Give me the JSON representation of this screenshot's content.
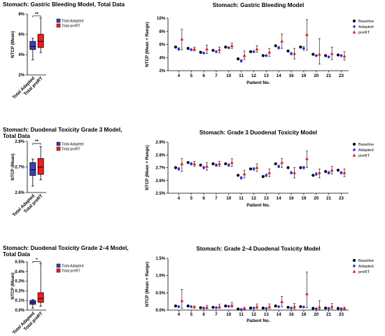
{
  "chart_data": [
    {
      "type": "box",
      "title": "Stomach: Gastric Bleeding Model, Total Data",
      "ylabel": "NTCP (Mean)",
      "yticks": [
        "2%",
        "4%",
        "6%",
        "8%"
      ],
      "ylim": [
        2,
        8
      ],
      "significance": "**",
      "categories": [
        "Total Adapted",
        "Total preRT"
      ],
      "legend": [
        "Total Adapted",
        "Total preRT"
      ],
      "colors": [
        "#3b3fc2",
        "#ff1a1a"
      ],
      "boxes": [
        {
          "min": 3.5,
          "q1": 4.5,
          "median": 4.8,
          "q3": 5.3,
          "max": 5.6
        },
        {
          "min": 4.2,
          "q1": 4.7,
          "median": 5.3,
          "q3": 6.0,
          "max": 7.6
        }
      ]
    },
    {
      "type": "scatter",
      "title": "Stomach: Gastric Bleeding Model",
      "ylabel": "NTCP (Mean + Range)",
      "xlabel": "Patient No.",
      "yticks": [
        "2%",
        "4%",
        "6%",
        "8%",
        "10%"
      ],
      "ylim": [
        2,
        10
      ],
      "categories": [
        "4",
        "5",
        "6",
        "7",
        "10",
        "11",
        "12",
        "13",
        "14",
        "16",
        "19",
        "20",
        "21",
        "23"
      ],
      "series": [
        {
          "name": "Baseline",
          "color": "#000000",
          "marker": "circle",
          "values": [
            5.6,
            5.4,
            4.8,
            5.1,
            5.6,
            3.8,
            4.9,
            4.3,
            5.8,
            5.0,
            5.6,
            4.5,
            4.3,
            4.4
          ],
          "err_low": [
            5.6,
            5.4,
            4.8,
            5.1,
            5.6,
            3.8,
            4.9,
            4.3,
            5.8,
            5.0,
            5.6,
            4.5,
            4.3,
            4.4
          ],
          "err_high": [
            5.6,
            5.4,
            4.8,
            5.1,
            5.6,
            3.8,
            4.9,
            4.3,
            5.8,
            5.0,
            5.6,
            4.5,
            4.3,
            4.4
          ]
        },
        {
          "name": "Adapted",
          "color": "#2030e0",
          "marker": "diamond",
          "values": [
            5.3,
            5.2,
            4.7,
            4.9,
            5.5,
            3.5,
            4.9,
            4.3,
            5.5,
            4.6,
            5.4,
            4.3,
            4.1,
            4.3
          ],
          "err_low": [
            5.1,
            5.1,
            4.6,
            4.8,
            5.4,
            3.3,
            4.8,
            4.2,
            5.3,
            4.4,
            5.1,
            4.2,
            4.0,
            4.2
          ],
          "err_high": [
            5.5,
            5.3,
            4.8,
            5.0,
            5.6,
            3.7,
            5.0,
            4.4,
            5.7,
            4.8,
            5.7,
            4.4,
            4.2,
            4.4
          ]
        },
        {
          "name": "preRT",
          "color": "#e81c1c",
          "marker": "triangle",
          "values": [
            6.8,
            5.3,
            5.3,
            5.2,
            5.8,
            4.3,
            5.3,
            4.8,
            6.5,
            4.6,
            7.5,
            4.5,
            4.6,
            4.2
          ],
          "err_low": [
            5.2,
            5.0,
            4.6,
            4.7,
            5.4,
            3.7,
            4.8,
            4.2,
            5.4,
            3.8,
            5.1,
            3.0,
            3.7,
            3.6
          ],
          "err_high": [
            8.3,
            5.6,
            5.9,
            5.6,
            6.2,
            5.0,
            5.8,
            5.4,
            7.6,
            5.4,
            9.8,
            6.9,
            5.6,
            4.9
          ]
        }
      ],
      "legend_position": "top-right"
    },
    {
      "type": "box",
      "title": "Stomach: Duodenal Toxicity Grade 3 Model, Total Data",
      "ylabel": "NTCP (Mean)",
      "yticks": [
        "2.6%",
        "2.7%",
        "2.8%"
      ],
      "ylim": [
        2.6,
        2.8
      ],
      "significance": "**",
      "categories": [
        "Total Adapted",
        "Total preRT"
      ],
      "legend": [
        "Total Adapted",
        "Total preRT"
      ],
      "colors": [
        "#3b3fc2",
        "#ff1a1a"
      ],
      "boxes": [
        {
          "min": 2.625,
          "q1": 2.667,
          "median": 2.689,
          "q3": 2.717,
          "max": 2.731
        },
        {
          "min": 2.65,
          "q1": 2.671,
          "median": 2.699,
          "q3": 2.733,
          "max": 2.779
        }
      ]
    },
    {
      "type": "scatter",
      "title": "Stomach: Grade 3 Duodenal Toxicity Model",
      "ylabel": "NTCP (Mean + Range)",
      "xlabel": "Patient No.",
      "yticks": [
        "2.5%",
        "2.6%",
        "2.7%",
        "2.8%",
        "2.9%"
      ],
      "ylim": [
        2.5,
        2.9
      ],
      "categories": [
        "4",
        "5",
        "6",
        "7",
        "10",
        "11",
        "12",
        "13",
        "14",
        "16",
        "19",
        "20",
        "21",
        "23"
      ],
      "series": [
        {
          "name": "Baseline",
          "color": "#000000",
          "marker": "circle",
          "values": [
            2.7,
            2.74,
            2.72,
            2.73,
            2.73,
            2.64,
            2.69,
            2.63,
            2.73,
            2.7,
            2.7,
            2.64,
            2.67,
            2.68
          ],
          "err_low": [
            2.7,
            2.74,
            2.72,
            2.73,
            2.73,
            2.64,
            2.69,
            2.63,
            2.73,
            2.7,
            2.7,
            2.64,
            2.67,
            2.68
          ],
          "err_high": [
            2.7,
            2.74,
            2.72,
            2.73,
            2.73,
            2.64,
            2.69,
            2.63,
            2.73,
            2.7,
            2.7,
            2.64,
            2.67,
            2.68
          ]
        },
        {
          "name": "Adapted",
          "color": "#2030e0",
          "marker": "diamond",
          "values": [
            2.69,
            2.73,
            2.7,
            2.72,
            2.72,
            2.62,
            2.69,
            2.64,
            2.71,
            2.66,
            2.7,
            2.65,
            2.66,
            2.66
          ],
          "err_low": [
            2.68,
            2.72,
            2.69,
            2.71,
            2.71,
            2.61,
            2.68,
            2.63,
            2.7,
            2.65,
            2.69,
            2.64,
            2.65,
            2.65
          ],
          "err_high": [
            2.7,
            2.74,
            2.71,
            2.73,
            2.73,
            2.63,
            2.7,
            2.65,
            2.72,
            2.67,
            2.71,
            2.66,
            2.67,
            2.67
          ]
        },
        {
          "name": "preRT",
          "color": "#e81c1c",
          "marker": "triangle",
          "values": [
            2.73,
            2.73,
            2.71,
            2.73,
            2.74,
            2.65,
            2.7,
            2.66,
            2.74,
            2.66,
            2.77,
            2.66,
            2.68,
            2.66
          ],
          "err_low": [
            2.67,
            2.71,
            2.68,
            2.71,
            2.71,
            2.62,
            2.67,
            2.63,
            2.7,
            2.62,
            2.7,
            2.62,
            2.65,
            2.63
          ],
          "err_high": [
            2.77,
            2.75,
            2.74,
            2.75,
            2.77,
            2.68,
            2.73,
            2.69,
            2.77,
            2.7,
            2.83,
            2.69,
            2.71,
            2.69
          ]
        }
      ],
      "legend_position": "top-right"
    },
    {
      "type": "box",
      "title": "Stomach: Duodenal Toxicity Grade 2–4  Model, Total Data",
      "ylabel": "NTCP (Mean)",
      "yticks": [
        "0.0%",
        "0.1%",
        "0.2%",
        "0.3%",
        "0.4%",
        "0.5%"
      ],
      "ylim": [
        0,
        0.5
      ],
      "significance": "*",
      "categories": [
        "Total Adapted",
        "Total preRT"
      ],
      "legend": [
        "Total Adapted",
        "Total preRT"
      ],
      "colors": [
        "#3b3fc2",
        "#ff1a1a"
      ],
      "boxes": [
        {
          "min": 0.02,
          "q1": 0.06,
          "median": 0.08,
          "q3": 0.1,
          "max": 0.11
        },
        {
          "min": 0.04,
          "q1": 0.08,
          "median": 0.12,
          "q3": 0.18,
          "max": 0.48
        }
      ]
    },
    {
      "type": "scatter",
      "title": "Stomach: Grade 2–4 Duodenal Toxicity Model",
      "ylabel": "NTCP (Mean + Range)",
      "xlabel": "Patient No.",
      "yticks": [
        "0.0%",
        "0.5%",
        "1.0%",
        "1.5%"
      ],
      "ylim": [
        0,
        1.5
      ],
      "categories": [
        "4",
        "5",
        "6",
        "7",
        "10",
        "11",
        "12",
        "13",
        "14",
        "16",
        "19",
        "20",
        "21",
        "23"
      ],
      "series": [
        {
          "name": "Baseline",
          "color": "#000000",
          "marker": "circle",
          "values": [
            0.12,
            0.12,
            0.07,
            0.08,
            0.12,
            0.03,
            0.06,
            0.06,
            0.12,
            0.08,
            0.1,
            0.05,
            0.06,
            0.05
          ],
          "err_low": [
            0.12,
            0.12,
            0.07,
            0.08,
            0.12,
            0.03,
            0.06,
            0.06,
            0.12,
            0.08,
            0.1,
            0.05,
            0.06,
            0.05
          ],
          "err_high": [
            0.12,
            0.12,
            0.07,
            0.08,
            0.12,
            0.03,
            0.06,
            0.06,
            0.12,
            0.08,
            0.1,
            0.05,
            0.06,
            0.05
          ]
        },
        {
          "name": "Adapted",
          "color": "#2030e0",
          "marker": "diamond",
          "values": [
            0.1,
            0.1,
            0.06,
            0.07,
            0.11,
            0.02,
            0.06,
            0.05,
            0.1,
            0.06,
            0.09,
            0.04,
            0.05,
            0.04
          ],
          "err_low": [
            0.09,
            0.09,
            0.05,
            0.06,
            0.1,
            0.01,
            0.05,
            0.04,
            0.09,
            0.05,
            0.08,
            0.03,
            0.04,
            0.03
          ],
          "err_high": [
            0.11,
            0.11,
            0.07,
            0.08,
            0.12,
            0.03,
            0.07,
            0.06,
            0.11,
            0.07,
            0.1,
            0.05,
            0.06,
            0.05
          ]
        },
        {
          "name": "preRT",
          "color": "#e81c1c",
          "marker": "triangle",
          "values": [
            0.27,
            0.09,
            0.08,
            0.1,
            0.14,
            0.05,
            0.1,
            0.1,
            0.24,
            0.1,
            0.47,
            0.09,
            0.1,
            0.05
          ],
          "err_low": [
            0.05,
            0.06,
            0.04,
            0.05,
            0.08,
            0.01,
            0.04,
            0.04,
            0.09,
            0.03,
            0.07,
            0.02,
            0.03,
            0.02
          ],
          "err_high": [
            0.6,
            0.12,
            0.14,
            0.17,
            0.22,
            0.08,
            0.18,
            0.18,
            0.4,
            0.19,
            1.1,
            0.27,
            0.19,
            0.08
          ]
        }
      ],
      "legend_position": "top-right"
    }
  ]
}
